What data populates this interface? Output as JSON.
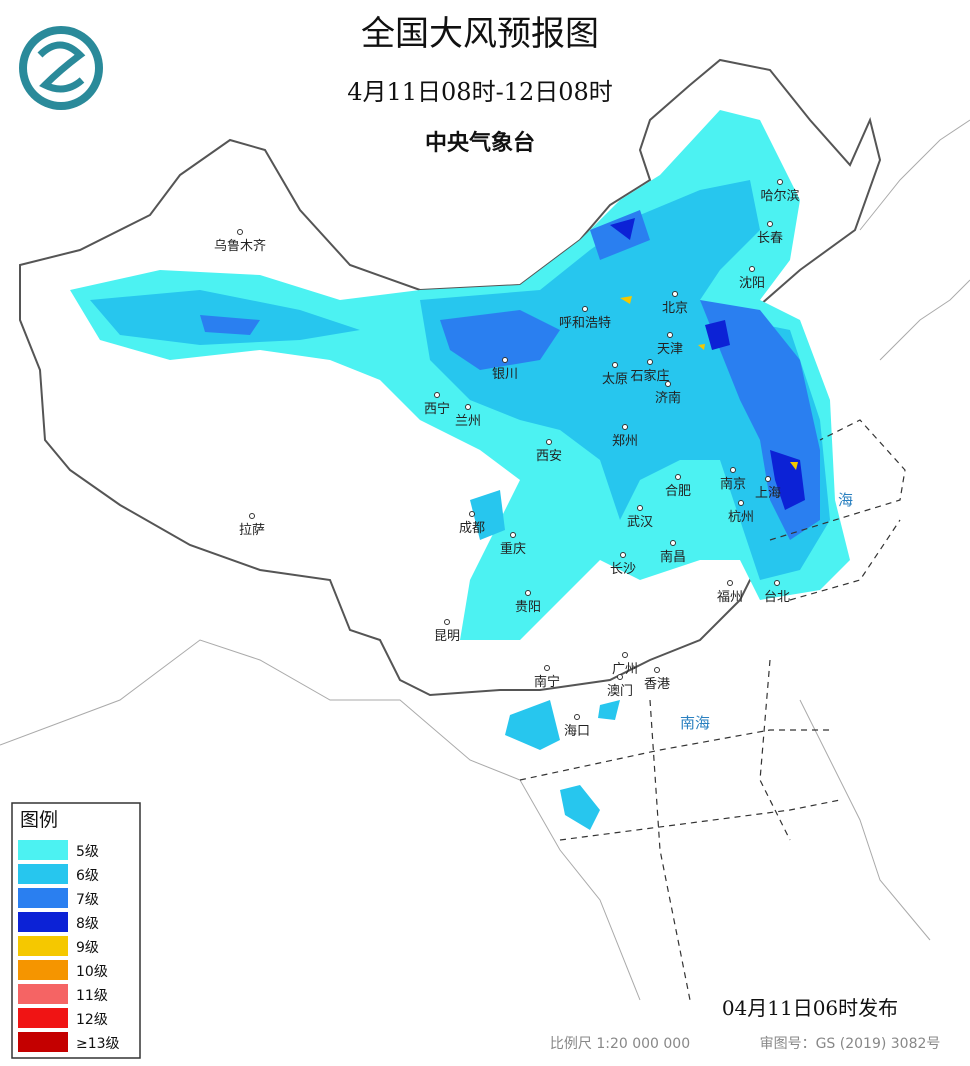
{
  "header": {
    "title": "全国大风预报图",
    "subtitle": "4月11日08时-12日08时",
    "agency": "中央气象台"
  },
  "legend": {
    "title": "图例",
    "items": [
      {
        "label": "5级",
        "color": "#4cf2f2"
      },
      {
        "label": "6级",
        "color": "#27c6ee"
      },
      {
        "label": "7级",
        "color": "#2a7ff0"
      },
      {
        "label": "8级",
        "color": "#0c22d6"
      },
      {
        "label": "9级",
        "color": "#f5c800"
      },
      {
        "label": "10级",
        "color": "#f59500"
      },
      {
        "label": "11级",
        "color": "#f56464"
      },
      {
        "label": "12级",
        "color": "#f01414"
      },
      {
        "label": "≥13级",
        "color": "#c40000"
      }
    ]
  },
  "cities": [
    "乌鲁木齐",
    "哈尔滨",
    "长春",
    "沈阳",
    "呼和浩特",
    "北京",
    "天津",
    "银川",
    "太原",
    "石家庄",
    "济南",
    "西宁",
    "兰州",
    "西安",
    "郑州",
    "合肥",
    "南京",
    "上海",
    "拉萨",
    "成都",
    "武汉",
    "杭州",
    "重庆",
    "长沙",
    "南昌",
    "贵阳",
    "福州",
    "台北",
    "昆明",
    "广州",
    "南宁",
    "澳门",
    "香港",
    "海口"
  ],
  "seas": {
    "south_sea": "南海",
    "east_sea": "海"
  },
  "footer": {
    "issued": "04月11日06时发布",
    "scale": "比例尺  1:20 000 000",
    "review": "审图号：GS (2019) 3082号"
  }
}
